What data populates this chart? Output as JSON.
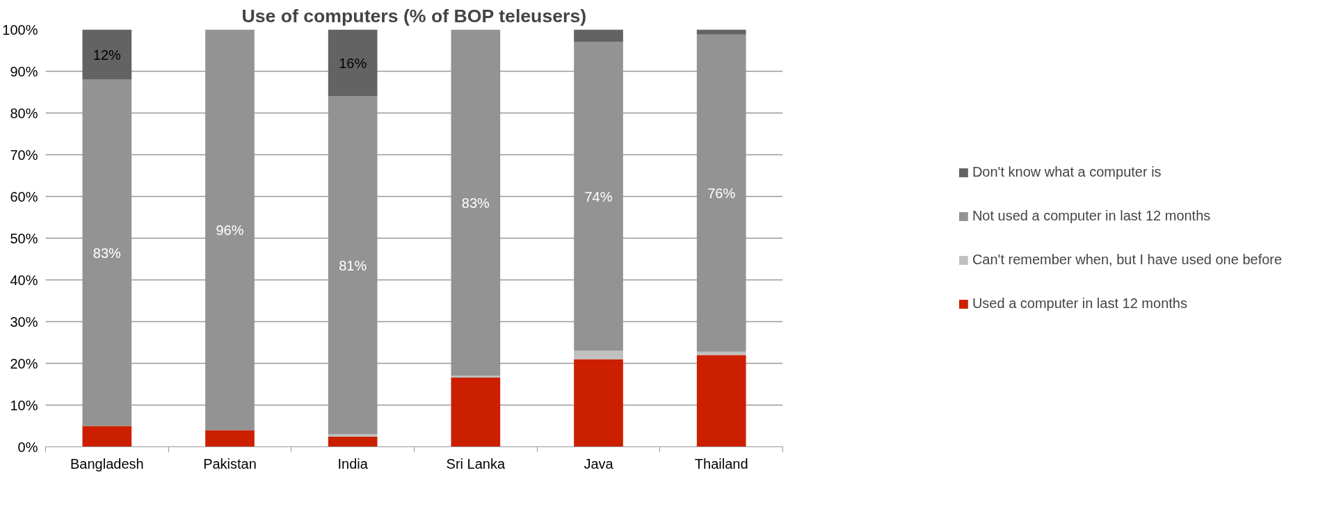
{
  "chart_data": {
    "type": "bar",
    "stacked": true,
    "title": "Use of computers (% of BOP teleusers)",
    "categories": [
      "Bangladesh",
      "Pakistan",
      "India",
      "Sri Lanka",
      "Java",
      "Thailand"
    ],
    "series": [
      {
        "name": "Used a computer in last 12 months",
        "color": "#cc1f00",
        "values": [
          5,
          4,
          2.4,
          16.6,
          21,
          22
        ]
      },
      {
        "name": "Can't remember when, but I have used one before",
        "color": "#c0c0c0",
        "values": [
          0,
          0,
          0.6,
          0.4,
          2,
          0.8
        ]
      },
      {
        "name": "Not used a computer in last 12 months",
        "color": "#939393",
        "values": [
          83,
          96,
          81,
          83,
          74,
          76
        ],
        "value_labels": [
          "83%",
          "96%",
          "81%",
          "83%",
          "74%",
          "76%"
        ]
      },
      {
        "name": "Don't know what a computer is",
        "color": "#636363",
        "values": [
          12,
          0,
          16,
          0,
          3,
          1.2
        ],
        "value_labels": [
          "12%",
          null,
          "16%",
          null,
          null,
          null
        ]
      }
    ],
    "ylim": [
      0,
      100
    ],
    "yticks": [
      {
        "value": 0,
        "label": "0%"
      },
      {
        "value": 10,
        "label": "10%"
      },
      {
        "value": 20,
        "label": "20%"
      },
      {
        "value": 30,
        "label": "30%"
      },
      {
        "value": 40,
        "label": "40%"
      },
      {
        "value": 50,
        "label": "50%"
      },
      {
        "value": 60,
        "label": "60%"
      },
      {
        "value": 70,
        "label": "70%"
      },
      {
        "value": 80,
        "label": "80%"
      },
      {
        "value": 90,
        "label": "90%"
      },
      {
        "value": 100,
        "label": "100%"
      }
    ],
    "grid": "y",
    "legend": "right"
  }
}
